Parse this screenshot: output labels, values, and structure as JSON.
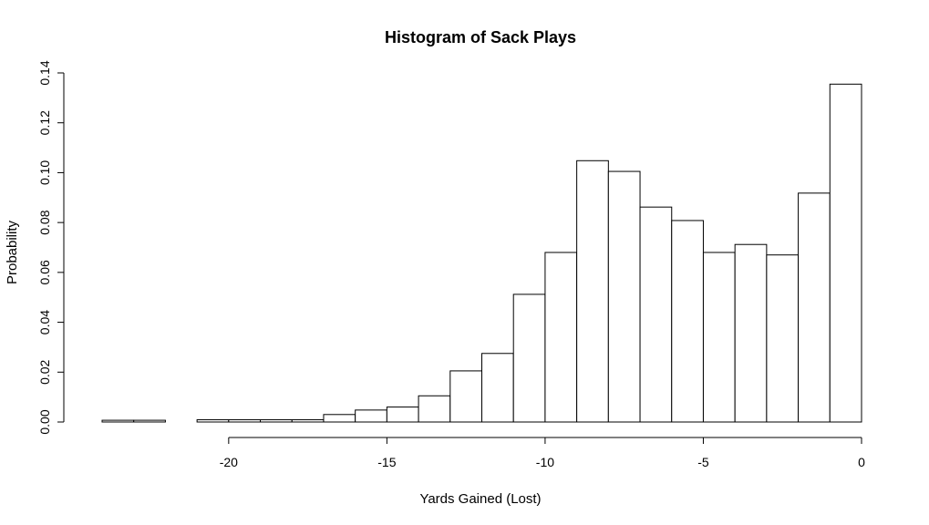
{
  "chart_data": {
    "type": "bar",
    "title": "Histogram of Sack Plays",
    "xlabel": "Yards Gained (Lost)",
    "ylabel": "Probability",
    "xlim": [
      -24,
      0
    ],
    "ylim": [
      0,
      0.14
    ],
    "x_ticks": [
      -20,
      -15,
      -10,
      -5,
      0
    ],
    "x_tick_labels": [
      "-20",
      "-15",
      "-10",
      "-5",
      "0"
    ],
    "y_ticks": [
      0,
      0.02,
      0.04,
      0.06,
      0.08,
      0.1,
      0.12,
      0.14
    ],
    "y_tick_labels": [
      "0.00",
      "0.02",
      "0.04",
      "0.06",
      "0.08",
      "0.10",
      "0.12",
      "0.14"
    ],
    "bin_width": 1,
    "bins": [
      {
        "start": -24,
        "end": -23,
        "value": 0.0007
      },
      {
        "start": -23,
        "end": -22,
        "value": 0.0007
      },
      {
        "start": -22,
        "end": -21,
        "value": 0.0
      },
      {
        "start": -21,
        "end": -20,
        "value": 0.0009
      },
      {
        "start": -20,
        "end": -19,
        "value": 0.0009
      },
      {
        "start": -19,
        "end": -18,
        "value": 0.0009
      },
      {
        "start": -18,
        "end": -17,
        "value": 0.0009
      },
      {
        "start": -17,
        "end": -16,
        "value": 0.003
      },
      {
        "start": -16,
        "end": -15,
        "value": 0.0048
      },
      {
        "start": -15,
        "end": -14,
        "value": 0.006
      },
      {
        "start": -14,
        "end": -13,
        "value": 0.0105
      },
      {
        "start": -13,
        "end": -12,
        "value": 0.0205
      },
      {
        "start": -12,
        "end": -11,
        "value": 0.0275
      },
      {
        "start": -11,
        "end": -10,
        "value": 0.0512
      },
      {
        "start": -10,
        "end": -9,
        "value": 0.068
      },
      {
        "start": -9,
        "end": -8,
        "value": 0.1048
      },
      {
        "start": -8,
        "end": -7,
        "value": 0.1005
      },
      {
        "start": -7,
        "end": -6,
        "value": 0.0862
      },
      {
        "start": -6,
        "end": -5,
        "value": 0.0808
      },
      {
        "start": -5,
        "end": -4,
        "value": 0.068
      },
      {
        "start": -4,
        "end": -3,
        "value": 0.0712
      },
      {
        "start": -3,
        "end": -2,
        "value": 0.067
      },
      {
        "start": -2,
        "end": -1,
        "value": 0.0918
      },
      {
        "start": -1,
        "end": 0,
        "value": 0.1355
      }
    ],
    "grid": false,
    "legend": "none"
  }
}
